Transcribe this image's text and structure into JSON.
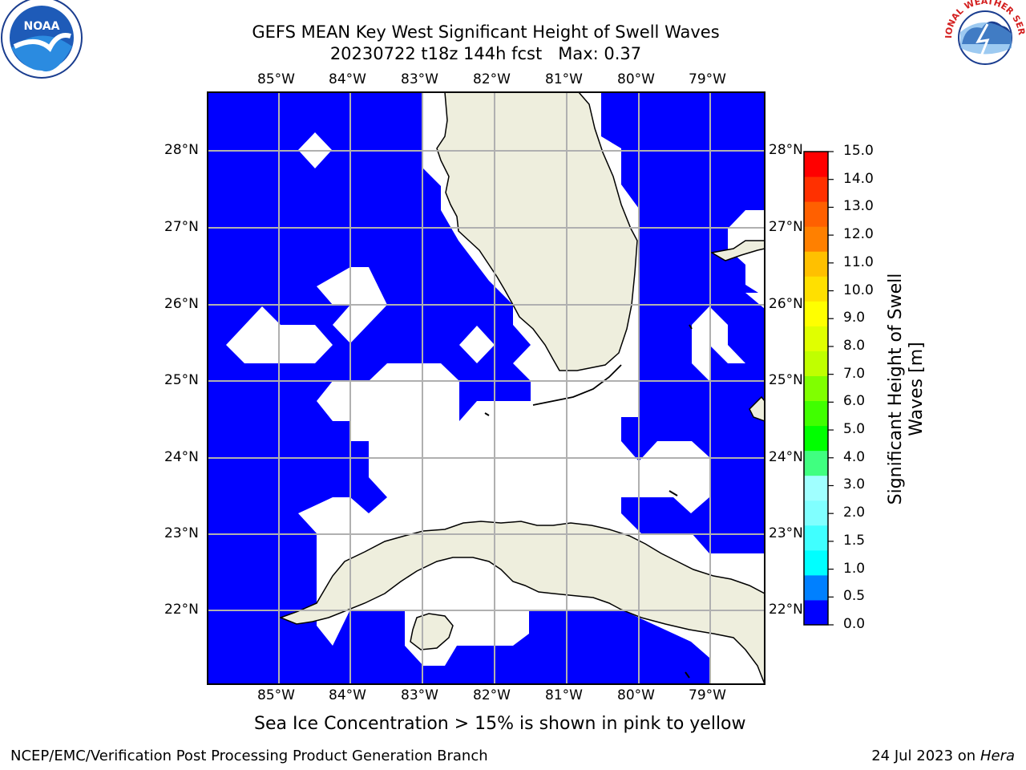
{
  "title": {
    "line1": "GEFS MEAN Key West Significant Height of Swell Waves",
    "line2": "20230722 t18z 144h fcst   Max: 0.37"
  },
  "map": {
    "lon_ticks": [
      "85°W",
      "84°W",
      "83°W",
      "82°W",
      "81°W",
      "80°W",
      "79°W"
    ],
    "lat_ticks": [
      "28°N",
      "27°N",
      "26°N",
      "25°N",
      "24°N",
      "23°N",
      "22°N"
    ],
    "colors": {
      "ocean_swell": "#0000ff",
      "land": "#eeeedd",
      "no_data": "#ffffff",
      "grid": "#b0b0b0"
    }
  },
  "colorbar": {
    "label_line1": "Significant Height of Swell",
    "label_line2": "Waves [m]",
    "ticks": [
      "15.0",
      "14.0",
      "13.0",
      "12.0",
      "11.0",
      "10.0",
      "9.0",
      "8.0",
      "7.0",
      "6.0",
      "5.0",
      "4.0",
      "3.0",
      "2.0",
      "1.5",
      "1.0",
      "0.5",
      "0.0"
    ],
    "bands": [
      "#0000ff",
      "#0080ff",
      "#00ffff",
      "#40ffff",
      "#80ffff",
      "#a0ffff",
      "#40ff80",
      "#00ff00",
      "#40ff00",
      "#80ff00",
      "#c0ff00",
      "#e0ff00",
      "#ffff00",
      "#ffe000",
      "#ffc000",
      "#ff8000",
      "#ff6000",
      "#ff3000",
      "#ff0000"
    ]
  },
  "note": "Sea Ice Concentration > 15% is shown in pink to yellow",
  "footer": {
    "left": "NCEP/EMC/Verification Post Processing Product Generation Branch",
    "right_prefix": "24 Jul 2023 on ",
    "right_host": "Hera"
  },
  "logos": {
    "left": "NOAA",
    "right": "NATIONAL WEATHER SERVICE"
  }
}
